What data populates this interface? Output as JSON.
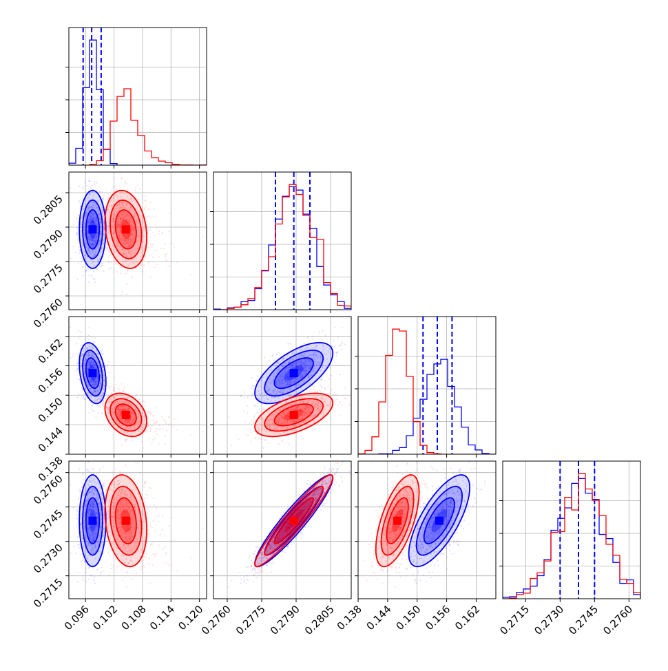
{
  "chart_data": {
    "type": "corner",
    "grid": true,
    "params": [
      {
        "range": [
          0.0925,
          0.1215
        ],
        "ticks": [
          0.096,
          0.102,
          0.108,
          0.114,
          0.12
        ],
        "tick_labels": [
          "0.096",
          "0.102",
          "0.108",
          "0.114",
          "0.120"
        ]
      },
      {
        "range": [
          0.2754,
          0.2814
        ],
        "ticks": [
          0.276,
          0.2775,
          0.279,
          0.2805
        ],
        "tick_labels": [
          "0.2760",
          "0.2775",
          "0.2790",
          "0.2805"
        ]
      },
      {
        "range": [
          0.138,
          0.166
        ],
        "ticks": [
          0.138,
          0.144,
          0.15,
          0.156,
          0.162
        ],
        "tick_labels": [
          "0.138",
          "0.144",
          "0.150",
          "0.156",
          "0.162"
        ]
      },
      {
        "range": [
          0.2705,
          0.2765
        ],
        "ticks": [
          0.2715,
          0.273,
          0.2745,
          0.276
        ],
        "tick_labels": [
          "0.2715",
          "0.2730",
          "0.2745",
          "0.2760"
        ]
      }
    ],
    "series": [
      {
        "color": "#0000ff",
        "means": [
          0.0975,
          0.2789,
          0.1545,
          0.2739
        ],
        "sigmas": [
          0.0014,
          0.00085,
          0.0031,
          0.001
        ],
        "skew": [
          0.0,
          0,
          0,
          0
        ],
        "correlations": {
          "1_0": 0.0,
          "2_0": -0.3,
          "2_1": 0.65,
          "3_0": 0.0,
          "3_1": 0.93,
          "3_2": 0.72
        },
        "quantiles": [
          [
            0.0955,
            0.0973,
            0.0993
          ],
          [
            0.2781,
            0.2789,
            0.2796
          ],
          [
            0.1512,
            0.1541,
            0.1571
          ],
          [
            0.273,
            0.2738,
            0.2745
          ]
        ]
      },
      {
        "color": "#ff0000",
        "means": [
          0.1045,
          0.2789,
          0.146,
          0.2739
        ],
        "sigmas": [
          0.0022,
          0.00085,
          0.0022,
          0.001
        ],
        "skew": [
          0.5,
          0,
          0,
          0
        ],
        "correlations": {
          "1_0": -0.2,
          "2_0": -0.3,
          "2_1": 0.55,
          "3_0": -0.2,
          "3_1": 0.95,
          "3_2": 0.62
        },
        "quantiles": null
      }
    ]
  }
}
